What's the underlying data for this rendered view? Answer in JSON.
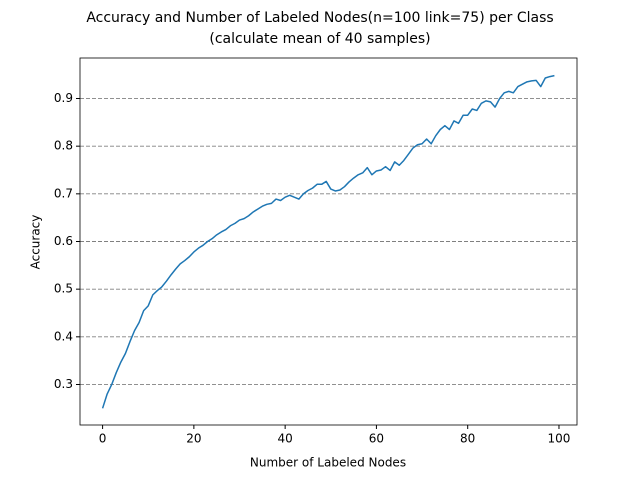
{
  "chart_data": {
    "type": "line",
    "title": [
      "Accuracy and Number of Labeled Nodes(n=100 link=75) per Class",
      "(calculate mean of 40 samples)"
    ],
    "x_label": "Number of Labeled Nodes",
    "y_label": "Accuracy",
    "x": [
      0,
      1,
      2,
      3,
      4,
      5,
      6,
      7,
      8,
      9,
      10,
      11,
      12,
      13,
      14,
      15,
      16,
      17,
      18,
      19,
      20,
      21,
      22,
      23,
      24,
      25,
      26,
      27,
      28,
      29,
      30,
      31,
      32,
      33,
      34,
      35,
      36,
      37,
      38,
      39,
      40,
      41,
      42,
      43,
      44,
      45,
      46,
      47,
      48,
      49,
      50,
      51,
      52,
      53,
      54,
      55,
      56,
      57,
      58,
      59,
      60,
      61,
      62,
      63,
      64,
      65,
      66,
      67,
      68,
      69,
      70,
      71,
      72,
      73,
      74,
      75,
      76,
      77,
      78,
      79,
      80,
      81,
      82,
      83,
      84,
      85,
      86,
      87,
      88,
      89,
      90,
      91,
      92,
      93,
      94,
      95,
      96,
      97,
      98,
      99
    ],
    "series": [
      {
        "color": "#1f77b4",
        "values": [
          0.25,
          0.28,
          0.3,
          0.325,
          0.347,
          0.365,
          0.39,
          0.413,
          0.43,
          0.455,
          0.465,
          0.488,
          0.497,
          0.505,
          0.517,
          0.53,
          0.542,
          0.553,
          0.56,
          0.568,
          0.578,
          0.586,
          0.592,
          0.6,
          0.606,
          0.614,
          0.62,
          0.625,
          0.633,
          0.638,
          0.645,
          0.648,
          0.654,
          0.662,
          0.668,
          0.674,
          0.678,
          0.68,
          0.689,
          0.686,
          0.693,
          0.697,
          0.693,
          0.689,
          0.7,
          0.707,
          0.712,
          0.72,
          0.72,
          0.726,
          0.71,
          0.706,
          0.708,
          0.715,
          0.725,
          0.733,
          0.74,
          0.744,
          0.755,
          0.74,
          0.748,
          0.75,
          0.757,
          0.749,
          0.767,
          0.76,
          0.77,
          0.783,
          0.796,
          0.803,
          0.805,
          0.815,
          0.805,
          0.822,
          0.835,
          0.843,
          0.835,
          0.853,
          0.848,
          0.865,
          0.865,
          0.878,
          0.875,
          0.89,
          0.895,
          0.893,
          0.882,
          0.9,
          0.912,
          0.915,
          0.912,
          0.925,
          0.93,
          0.935,
          0.937,
          0.938,
          0.925,
          0.943,
          0.946,
          0.948
        ]
      }
    ],
    "xlim": [
      -4.95,
      103.95
    ],
    "ylim": [
      0.215,
      0.985
    ],
    "xticks": [
      0,
      20,
      40,
      60,
      80,
      100
    ],
    "yticks": [
      0.3,
      0.4,
      0.5,
      0.6,
      0.7,
      0.8,
      0.9
    ],
    "grid": "y"
  }
}
